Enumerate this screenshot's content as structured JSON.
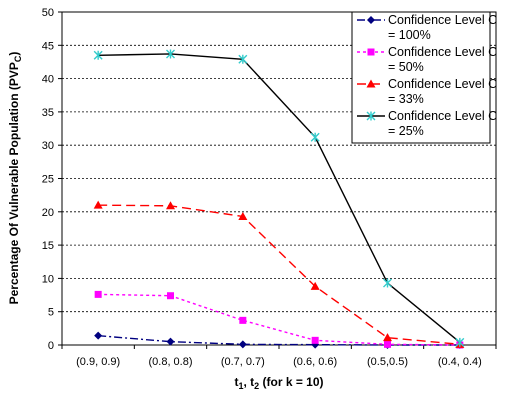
{
  "chart_data": {
    "type": "line",
    "categories": [
      "(0.9, 0.9)",
      "(0.8, 0.8)",
      "(0.7, 0.7)",
      "(0.6, 0.6)",
      "(0.5,0.5)",
      "(0.4, 0.4)"
    ],
    "xlabel_main": "t",
    "xlabel_sub1": "1",
    "xlabel_sep": ", t",
    "xlabel_sub2": "2",
    "xlabel_rest": " (for k = 10)",
    "ylabel_main": "Percentage Of Vulnerable Population (PVP",
    "ylabel_sub": "C",
    "ylabel_end": ")",
    "ylim": [
      0,
      50
    ],
    "yticks": [
      0,
      5,
      10,
      15,
      20,
      25,
      30,
      35,
      40,
      45,
      50
    ],
    "grid": "horizontal dashed",
    "legend_position": "top-right",
    "series": [
      {
        "name": "Confidence Level C = 100%",
        "legend_line1": "Confidence Level C",
        "legend_line2": "= 100%",
        "color": "#000080",
        "dash": "8,3,2,3",
        "marker": "diamond",
        "values": [
          1.4,
          0.5,
          0.1,
          0.05,
          0.0,
          0.0
        ]
      },
      {
        "name": "Confidence Level C = 50%",
        "legend_line1": "Confidence Level C",
        "legend_line2": "= 50%",
        "color": "#ff00ff",
        "dash": "3,3",
        "marker": "square",
        "values": [
          7.6,
          7.4,
          3.7,
          0.7,
          0.1,
          0.0
        ]
      },
      {
        "name": "Confidence Level C = 33%",
        "legend_line1": "Confidence Level C",
        "legend_line2": "= 33%",
        "color": "#ff0000",
        "dash": "9,5",
        "marker": "triangle",
        "values": [
          21.0,
          20.9,
          19.3,
          8.8,
          1.1,
          0.1
        ]
      },
      {
        "name": "Confidence Level C = 25%",
        "legend_line1": "Confidence Level C",
        "legend_line2": "= 25%",
        "color": "#000000",
        "dash": "",
        "marker": "star",
        "markerColor": "#33cccc",
        "values": [
          43.5,
          43.7,
          42.9,
          31.2,
          9.3,
          0.4
        ]
      }
    ]
  }
}
